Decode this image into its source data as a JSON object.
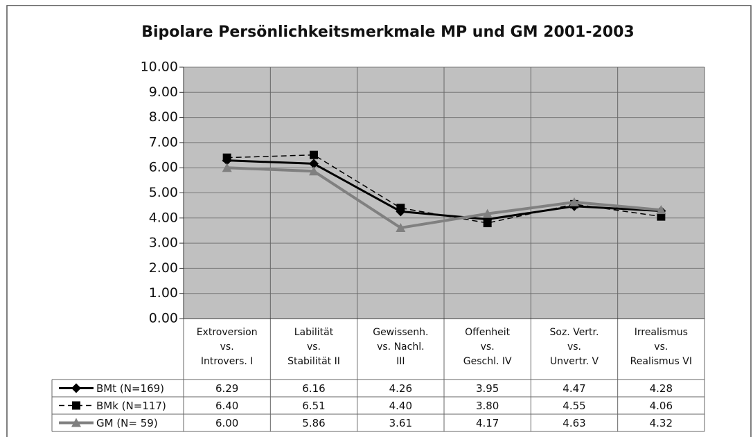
{
  "chart_data": {
    "type": "line",
    "title": "Bipolare Persönlichkeitsmerkmale MP und GM 2001-2003",
    "categories": [
      "Extroversion\nvs.\nIntrovers. I",
      "Labilität\nvs.\nStabilität  II",
      "Gewissenh.\nvs.    Nachl.\nIII",
      "Offenheit\nvs.\nGeschl. IV",
      "Soz. Vertr.\nvs.\nUnvertr. V",
      "Irrealismus\nvs.\nRealismus VI"
    ],
    "series": [
      {
        "name": "BMt (N=169)",
        "color": "#000000",
        "dash": "solid",
        "marker": "diamond",
        "values": [
          6.29,
          6.16,
          4.26,
          3.95,
          4.47,
          4.28
        ],
        "value_labels": [
          "6.29",
          "6.16",
          "4.26",
          "3.95",
          "4.47",
          "4.28"
        ]
      },
      {
        "name": "BMk (N=117)",
        "color": "#000000",
        "dash": "dashed",
        "marker": "square",
        "values": [
          6.4,
          6.51,
          4.4,
          3.8,
          4.55,
          4.06
        ],
        "value_labels": [
          "6.40",
          "6.51",
          "4.40",
          "3.80",
          "4.55",
          "4.06"
        ]
      },
      {
        "name": "GM (N= 59)",
        "color": "#808080",
        "dash": "solid",
        "marker": "triangle",
        "values": [
          6,
          5.86,
          3.61,
          4.17,
          4.63,
          4.32
        ],
        "value_labels": [
          "6.00",
          "5.86",
          "3.61",
          "4.17",
          "4.63",
          "4.32"
        ]
      }
    ],
    "ylim": [
      0,
      10
    ],
    "yticks": [
      {
        "value": 0,
        "label": "0.00"
      },
      {
        "value": 1,
        "label": "1.00"
      },
      {
        "value": 2,
        "label": "2.00"
      },
      {
        "value": 3,
        "label": "3.00"
      },
      {
        "value": 4,
        "label": "4.00"
      },
      {
        "value": 5,
        "label": "5.00"
      },
      {
        "value": 6,
        "label": "6.00"
      },
      {
        "value": 7,
        "label": "7.00"
      },
      {
        "value": 8,
        "label": "8.00"
      },
      {
        "value": 9,
        "label": "9.00"
      },
      {
        "value": 10,
        "label": "10.00"
      }
    ],
    "grid": true,
    "plot_background": "#c0c0c0"
  }
}
